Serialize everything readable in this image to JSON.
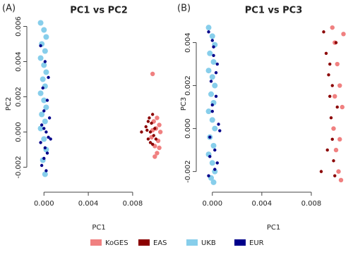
{
  "chart_data": [
    {
      "type": "scatter",
      "panel_label": "(A)",
      "title": "PC1 vs PC2",
      "x_label": "PC1",
      "y_label": "PC2",
      "xlim": [
        -0.0011,
        0.011
      ],
      "ylim": [
        -0.0031,
        0.0063
      ],
      "xticks": [
        {
          "value": 0,
          "label": "0.000"
        },
        0.004,
        0.008
      ],
      "yticks": [
        -0.002,
        {
          "value": 0,
          "label": "0.000"
        },
        0.002,
        0.004,
        0.006
      ],
      "series": [
        {
          "name": "KoGES",
          "color": "#f08080",
          "x": [
            0.0098,
            0.01,
            0.0102,
            0.0104,
            0.0099,
            0.0101,
            0.0103,
            0.0105,
            0.0097,
            0.0102,
            0.0104,
            0.01,
            0.0098
          ],
          "values": [
            0.0033,
            -0.0014,
            -0.0012,
            -0.0009,
            0.0006,
            0.0002,
            -0.0005,
            0.0,
            -0.0003,
            0.0008,
            0.0004,
            -0.0008,
            0.0001
          ]
        },
        {
          "name": "EAS",
          "color": "#8b0000",
          "x": [
            0.0088,
            0.0092,
            0.0094,
            0.0095,
            0.0096,
            0.0097,
            0.0098,
            0.0099,
            0.01,
            0.0093,
            0.0096,
            0.0098,
            0.0101,
            0.0094
          ],
          "values": [
            0.0,
            0.0003,
            -0.0004,
            0.0008,
            -0.0006,
            0.0005,
            0.001,
            -0.0002,
            0.0002,
            0.0001,
            0.0,
            -0.0007,
            -0.0004,
            0.0006
          ]
        },
        {
          "name": "UKB",
          "color": "#87ceeb",
          "x": [
            -0.0003,
            0.0,
            0.0002,
            -0.0002,
            0.0001,
            -0.0003,
            0.0,
            0.0002,
            -0.0001,
            0.0001,
            -0.0003,
            0.0,
            0.0002,
            -0.0002,
            0.0001,
            -0.0003,
            0.0,
            0.0002,
            -0.0001,
            0.0001
          ],
          "values": [
            0.0062,
            0.0058,
            0.0054,
            0.005,
            0.0046,
            0.0042,
            0.0038,
            0.0034,
            0.003,
            0.0026,
            0.0022,
            0.0018,
            0.0014,
            0.001,
            0.0006,
            0.0002,
            -0.0004,
            -0.001,
            -0.0016,
            -0.0024
          ]
        },
        {
          "name": "EUR",
          "color": "#00008b",
          "x": [
            -0.0003,
            0.0001,
            0.0004,
            -0.0001,
            0.0003,
            0.0,
            0.0005,
            -0.0002,
            0.0002,
            0.0004,
            -0.0003,
            0.0001,
            0.0003,
            0.0,
            0.0006,
            -0.0002,
            0.0002,
            0.0
          ],
          "values": [
            0.0049,
            0.004,
            0.0031,
            0.0025,
            0.0018,
            0.0012,
            0.0008,
            0.0004,
            0.0,
            -0.0003,
            -0.0006,
            -0.0009,
            -0.0012,
            -0.0015,
            -0.0004,
            -0.0019,
            -0.0022,
            0.0002
          ]
        }
      ]
    },
    {
      "type": "scatter",
      "panel_label": "(B)",
      "title": "PC1 vs PC3",
      "x_label": "PC1",
      "y_label": "PC3",
      "xlim": [
        -0.0009,
        0.0108
      ],
      "ylim": [
        -0.0027,
        0.005
      ],
      "xticks": [
        {
          "value": 0,
          "label": "0.000"
        },
        0.004,
        0.008
      ],
      "yticks": [
        -0.002,
        {
          "value": 0,
          "label": "0.000"
        },
        0.002,
        0.004
      ],
      "series": [
        {
          "color": "#f08080",
          "x": [
            0.0097,
            0.0099,
            0.0101,
            0.0103,
            0.0105,
            0.0098,
            0.01,
            0.0102,
            0.0104,
            0.0106,
            0.0099,
            0.0103
          ],
          "values": [
            0.0047,
            0.004,
            0.003,
            0.002,
            0.001,
            0.0,
            -0.001,
            -0.002,
            -0.0024,
            0.0044,
            0.0015,
            -0.0005
          ]
        },
        {
          "color": "#8b0000",
          "x": [
            0.0088,
            0.009,
            0.0092,
            0.0094,
            0.0095,
            0.0096,
            0.0097,
            0.0098,
            0.0099,
            0.01,
            0.0101,
            0.0093,
            0.0095,
            0.0097
          ],
          "values": [
            -0.002,
            0.0045,
            0.0035,
            0.0025,
            0.0015,
            0.0005,
            -0.0005,
            -0.0015,
            -0.0022,
            0.004,
            0.001,
            -0.001,
            0.003,
            0.002
          ]
        },
        {
          "color": "#87ceeb",
          "x": [
            -0.0003,
            0.0,
            0.0002,
            -0.0002,
            0.0001,
            -0.0003,
            0.0,
            0.0002,
            -0.0001,
            0.0001,
            -0.0003,
            0.0,
            0.0002,
            -0.0002,
            0.0001,
            -0.0003,
            0.0,
            0.0002,
            -0.0001,
            0.0001
          ],
          "values": [
            0.0047,
            0.0043,
            0.0039,
            0.0035,
            0.0031,
            0.0027,
            0.0024,
            0.002,
            0.0016,
            0.0012,
            0.0008,
            0.0004,
            0.0,
            -0.0004,
            -0.0008,
            -0.0012,
            -0.0016,
            -0.002,
            -0.0023,
            -0.0025
          ]
        },
        {
          "color": "#00008b",
          "x": [
            -0.0003,
            0.0001,
            0.0004,
            -0.0001,
            0.0003,
            0.0,
            0.0005,
            -0.0002,
            0.0002,
            0.0004,
            -0.0003,
            0.0001,
            0.0003,
            0.0,
            0.0006,
            -0.0002,
            0.0002,
            0.0
          ],
          "values": [
            0.0045,
            0.0038,
            0.003,
            0.0022,
            0.0015,
            0.0008,
            0.0002,
            -0.0004,
            -0.001,
            -0.0016,
            -0.0022,
            0.0034,
            0.0026,
            0.0011,
            -0.0001,
            -0.0013,
            -0.0019,
            0.0041
          ]
        }
      ]
    }
  ]
}
